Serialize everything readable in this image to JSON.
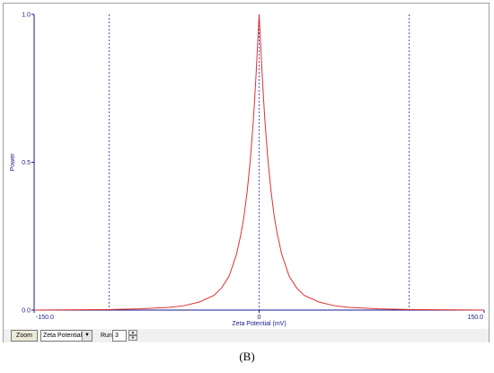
{
  "toolbar": {
    "zoom_label": "Zoom",
    "select_value": "Zeta Potential",
    "run_label": "Run",
    "run_value": "3"
  },
  "caption": "(B)",
  "colors": {
    "curve": "#e03030",
    "axis": "#1a1a8c",
    "dashed": "#2a2ac8"
  },
  "chart_data": {
    "type": "line",
    "xlabel": "Zeta Potential (mV)",
    "ylabel": "Power",
    "xlim": [
      -150,
      150
    ],
    "ylim": [
      0,
      1.0
    ],
    "x_ticks": [
      "-150.0",
      "0",
      "150.0"
    ],
    "y_ticks": [
      "0.0",
      "0.5",
      "1.0"
    ],
    "reference_lines_x": [
      -100,
      0,
      100
    ],
    "series": [
      {
        "x": [
          -150,
          -120,
          -100,
          -80,
          -60,
          -50,
          -40,
          -30,
          -25,
          -20,
          -15,
          -12,
          -10,
          -8,
          -6,
          -4,
          -3,
          -2,
          -1,
          0,
          1,
          2,
          3,
          4,
          6,
          8,
          10,
          12,
          15,
          20,
          25,
          30,
          40,
          50,
          60,
          80,
          100,
          120,
          150
        ],
        "y": [
          0.0,
          0.001,
          0.002,
          0.004,
          0.009,
          0.015,
          0.027,
          0.05,
          0.075,
          0.115,
          0.19,
          0.26,
          0.32,
          0.4,
          0.5,
          0.63,
          0.71,
          0.8,
          0.9,
          1.0,
          0.9,
          0.8,
          0.71,
          0.63,
          0.5,
          0.4,
          0.32,
          0.26,
          0.19,
          0.115,
          0.075,
          0.05,
          0.027,
          0.015,
          0.009,
          0.004,
          0.002,
          0.001,
          0.0
        ]
      }
    ]
  }
}
